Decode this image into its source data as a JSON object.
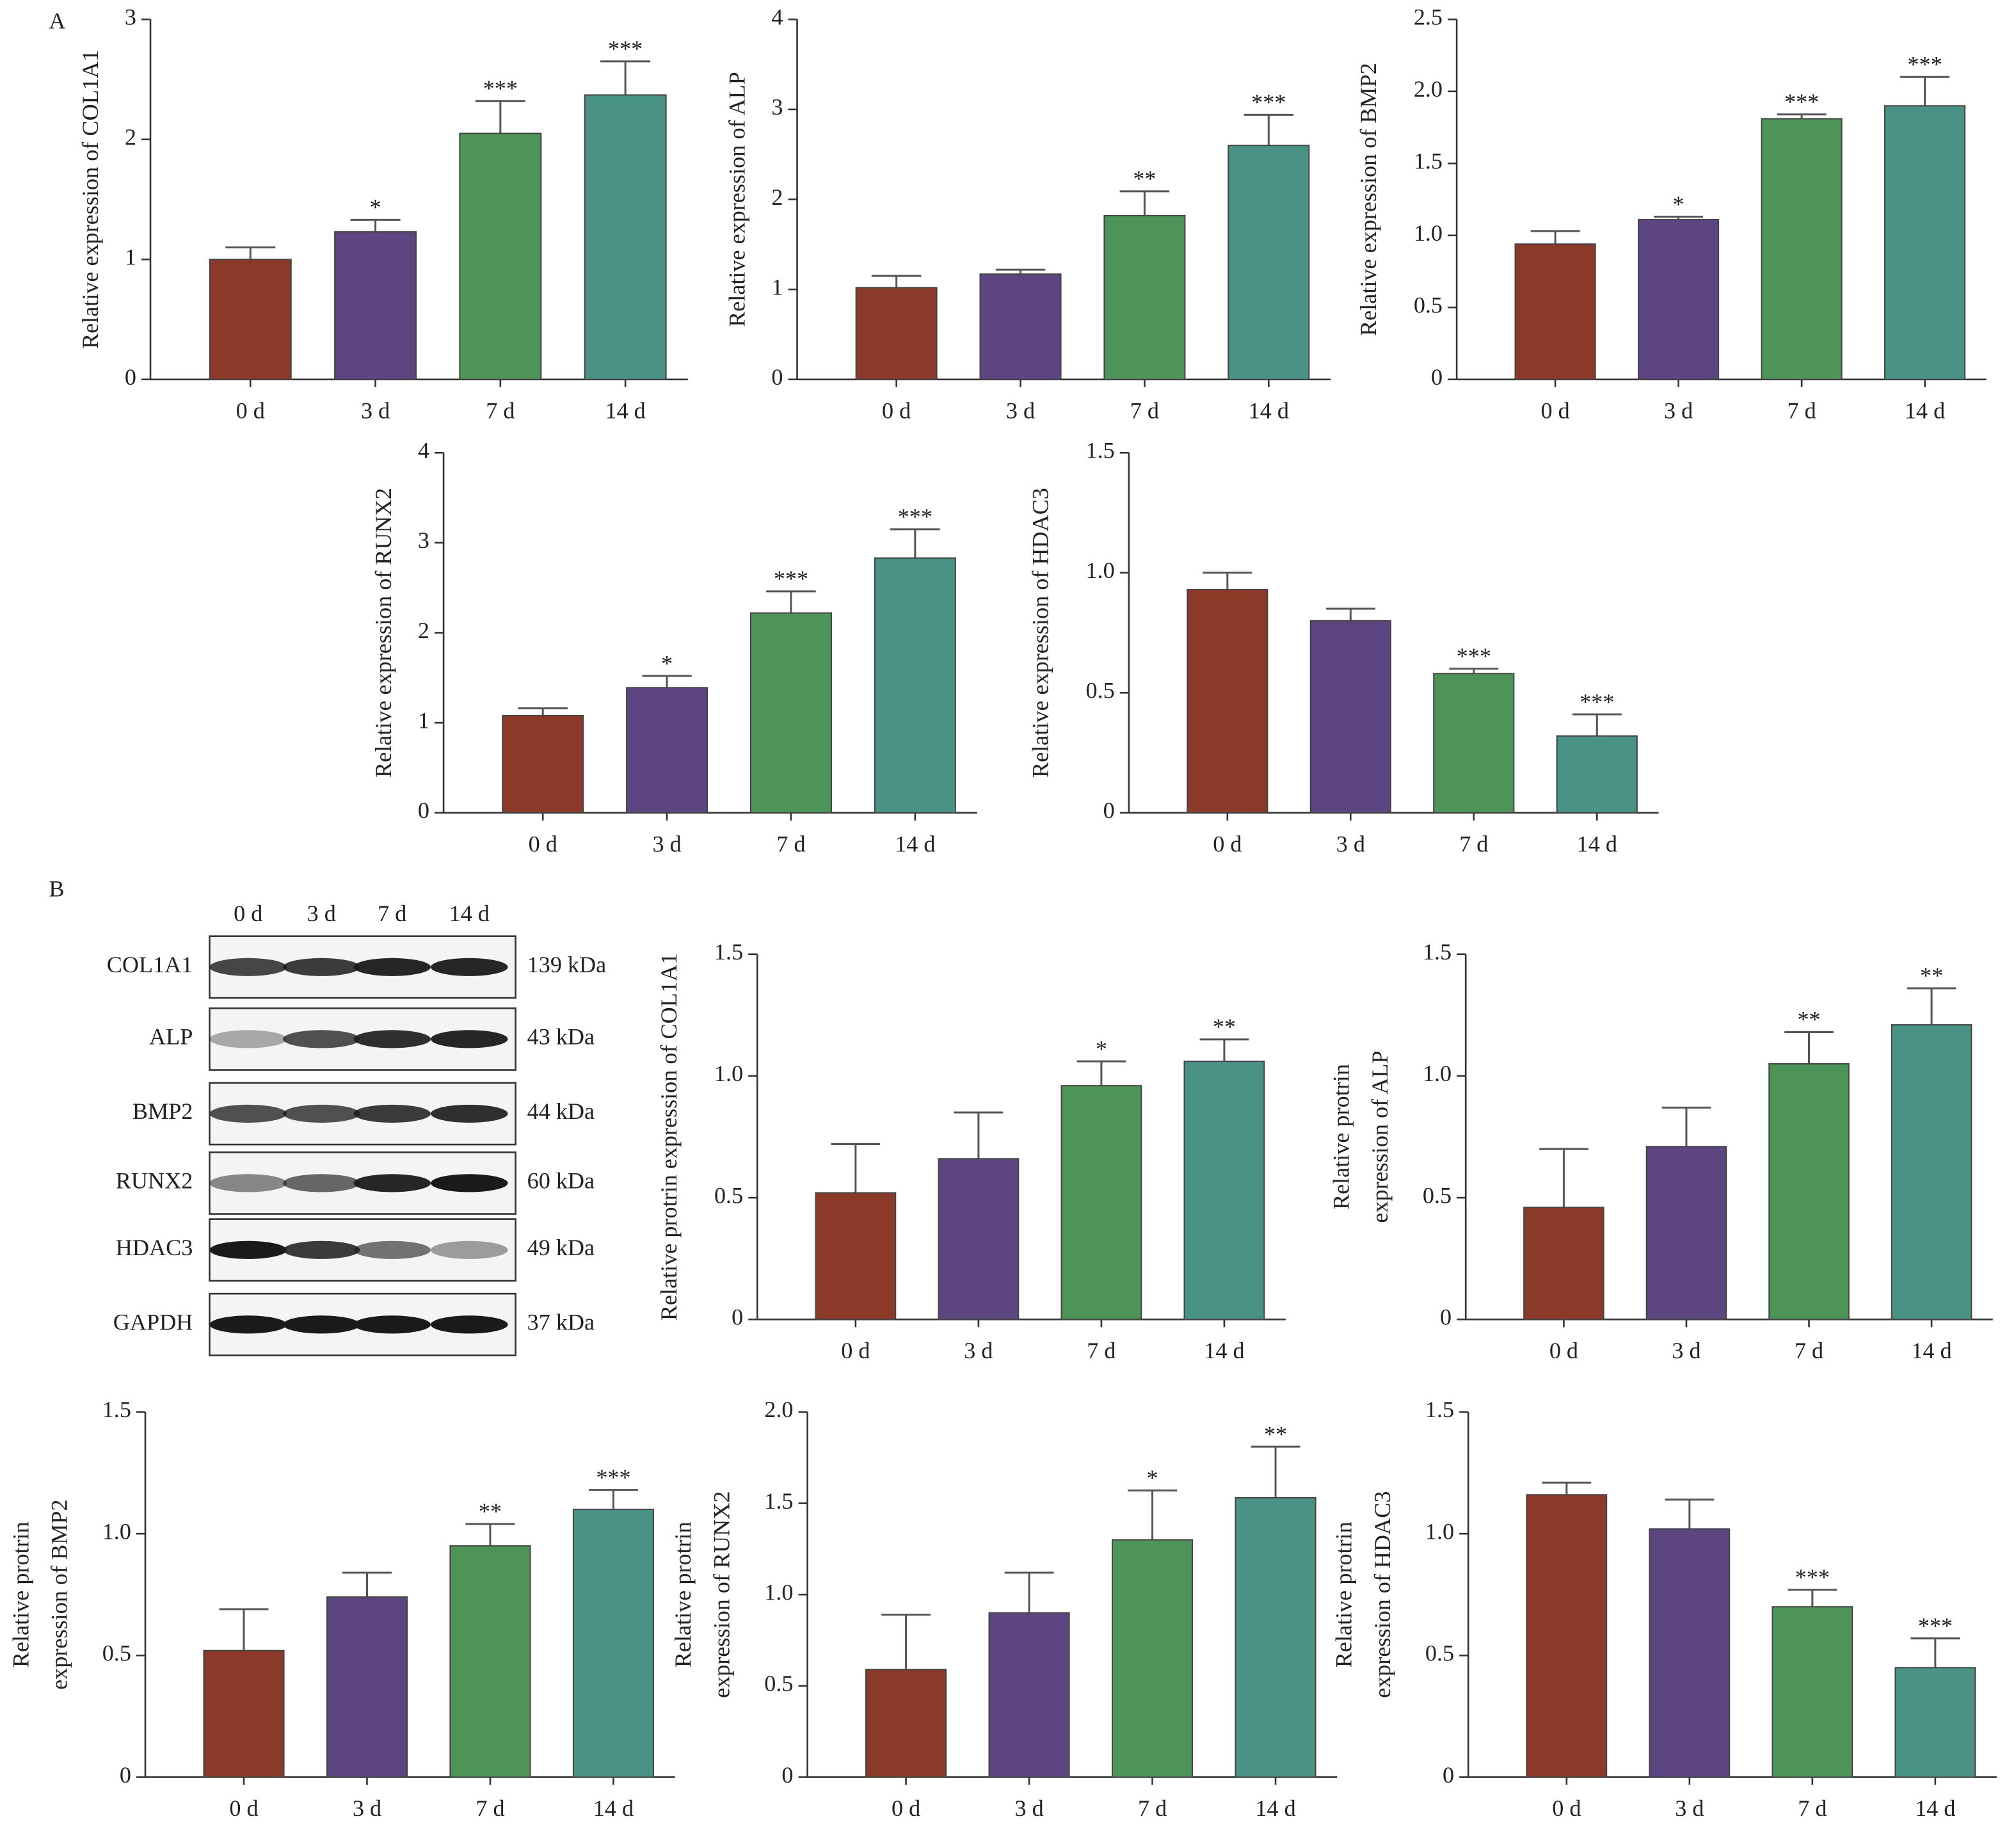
{
  "panels": [
    "A",
    "B"
  ],
  "blot": {
    "lanes": [
      "0 d",
      "3 d",
      "7 d",
      "14 d"
    ],
    "proteins": [
      "COL1A1",
      "ALP",
      "BMP2",
      "RUNX2",
      "HDAC3",
      "GAPDH"
    ],
    "weights": [
      "139 kDa",
      "43 kDa",
      "44 kDa",
      "60 kDa",
      "49 kDa",
      "37 kDa"
    ]
  },
  "chart_data": [
    {
      "type": "bar",
      "ylabel": [
        "Relative expression of COL1A1"
      ],
      "categories": [
        "0 d",
        "3 d",
        "7 d",
        "14 d"
      ],
      "colors": [
        "#8b3a2a",
        "#5c4580",
        "#4e9358",
        "#4a9186"
      ],
      "values": [
        1.0,
        1.23,
        2.05,
        2.37
      ],
      "errors": [
        0.1,
        0.1,
        0.27,
        0.28
      ],
      "annotations": [
        null,
        "*",
        "***",
        "***"
      ],
      "ylim": [
        0,
        3
      ],
      "yticks": [
        0,
        1,
        2,
        3
      ]
    },
    {
      "type": "bar",
      "ylabel": [
        "Relative expression of ALP"
      ],
      "categories": [
        "0 d",
        "3 d",
        "7 d",
        "14 d"
      ],
      "colors": [
        "#8b3a2a",
        "#5c4580",
        "#4e9358",
        "#4a9186"
      ],
      "values": [
        1.02,
        1.17,
        1.82,
        2.6
      ],
      "errors": [
        0.13,
        0.05,
        0.27,
        0.34
      ],
      "annotations": [
        null,
        null,
        "**",
        "***"
      ],
      "ylim": [
        0,
        4
      ],
      "yticks": [
        0,
        1,
        2,
        3,
        4
      ]
    },
    {
      "type": "bar",
      "ylabel": [
        "Relative expression of BMP2"
      ],
      "categories": [
        "0 d",
        "3 d",
        "7 d",
        "14 d"
      ],
      "colors": [
        "#8b3a2a",
        "#5c4580",
        "#4e9358",
        "#4a9186"
      ],
      "values": [
        0.94,
        1.11,
        1.81,
        1.9
      ],
      "errors": [
        0.09,
        0.02,
        0.03,
        0.2
      ],
      "annotations": [
        null,
        "*",
        "***",
        "***"
      ],
      "ylim": [
        0,
        2.5
      ],
      "yticks": [
        0,
        0.5,
        {
          "value": 1,
          "label": "1.0"
        },
        1.5,
        {
          "value": 2,
          "label": "2.0"
        },
        2.5
      ]
    },
    {
      "type": "bar",
      "ylabel": [
        "Relative expression of RUNX2"
      ],
      "categories": [
        "0 d",
        "3 d",
        "7 d",
        "14 d"
      ],
      "colors": [
        "#8b3a2a",
        "#5c4580",
        "#4e9358",
        "#4a9186"
      ],
      "values": [
        1.08,
        1.39,
        2.22,
        2.83
      ],
      "errors": [
        0.08,
        0.13,
        0.24,
        0.32
      ],
      "annotations": [
        null,
        "*",
        "***",
        "***"
      ],
      "ylim": [
        0,
        4
      ],
      "yticks": [
        0,
        1,
        2,
        3,
        4
      ]
    },
    {
      "type": "bar",
      "ylabel": [
        "Relative expression of HDAC3"
      ],
      "categories": [
        "0 d",
        "3 d",
        "7 d",
        "14 d"
      ],
      "colors": [
        "#8b3a2a",
        "#5c4580",
        "#4e9358",
        "#4a9186"
      ],
      "values": [
        0.93,
        0.8,
        0.58,
        0.32
      ],
      "errors": [
        0.07,
        0.05,
        0.02,
        0.09
      ],
      "annotations": [
        null,
        null,
        "***",
        "***"
      ],
      "ylim": [
        0,
        1.5
      ],
      "yticks": [
        0,
        0.5,
        {
          "value": 1,
          "label": "1.0"
        },
        1.5
      ]
    },
    {
      "type": "bar",
      "ylabel": [
        "Relative protrin expression of COL1A1"
      ],
      "categories": [
        "0 d",
        "3 d",
        "7 d",
        "14 d"
      ],
      "colors": [
        "#8b3a2a",
        "#5c4580",
        "#4e9358",
        "#4a9186"
      ],
      "values": [
        0.52,
        0.66,
        0.96,
        1.06
      ],
      "errors": [
        0.2,
        0.19,
        0.1,
        0.09
      ],
      "annotations": [
        null,
        null,
        "*",
        "**"
      ],
      "ylim": [
        0,
        1.5
      ],
      "yticks": [
        0,
        0.5,
        {
          "value": 1,
          "label": "1.0"
        },
        1.5
      ]
    },
    {
      "type": "bar",
      "ylabel": [
        "Relative protrin",
        "expression of ALP"
      ],
      "categories": [
        "0 d",
        "3 d",
        "7 d",
        "14 d"
      ],
      "colors": [
        "#8b3a2a",
        "#5c4580",
        "#4e9358",
        "#4a9186"
      ],
      "values": [
        0.46,
        0.71,
        1.05,
        1.21
      ],
      "errors": [
        0.24,
        0.16,
        0.13,
        0.15
      ],
      "annotations": [
        null,
        null,
        "**",
        "**"
      ],
      "ylim": [
        0,
        1.5
      ],
      "yticks": [
        0,
        0.5,
        {
          "value": 1,
          "label": "1.0"
        },
        1.5
      ]
    },
    {
      "type": "bar",
      "ylabel": [
        "Relative protrin",
        "expression of BMP2"
      ],
      "categories": [
        "0 d",
        "3 d",
        "7 d",
        "14 d"
      ],
      "colors": [
        "#8b3a2a",
        "#5c4580",
        "#4e9358",
        "#4a9186"
      ],
      "values": [
        0.52,
        0.74,
        0.95,
        1.1
      ],
      "errors": [
        0.17,
        0.1,
        0.09,
        0.08
      ],
      "annotations": [
        null,
        null,
        "**",
        "***"
      ],
      "ylim": [
        0,
        1.5
      ],
      "yticks": [
        0,
        0.5,
        {
          "value": 1,
          "label": "1.0"
        },
        1.5
      ]
    },
    {
      "type": "bar",
      "ylabel": [
        "Relative protrin",
        "expression of RUNX2"
      ],
      "categories": [
        "0 d",
        "3 d",
        "7 d",
        "14 d"
      ],
      "colors": [
        "#8b3a2a",
        "#5c4580",
        "#4e9358",
        "#4a9186"
      ],
      "values": [
        0.59,
        0.9,
        1.3,
        1.53
      ],
      "errors": [
        0.3,
        0.22,
        0.27,
        0.28
      ],
      "annotations": [
        null,
        null,
        "*",
        "**"
      ],
      "ylim": [
        0,
        2
      ],
      "yticks": [
        0,
        0.5,
        {
          "value": 1,
          "label": "1.0"
        },
        1.5,
        {
          "value": 2,
          "label": "2.0"
        }
      ]
    },
    {
      "type": "bar",
      "ylabel": [
        "Relative protrin",
        "expression of HDAC3"
      ],
      "categories": [
        "0 d",
        "3 d",
        "7 d",
        "14 d"
      ],
      "colors": [
        "#8b3a2a",
        "#5c4580",
        "#4e9358",
        "#4a9186"
      ],
      "values": [
        1.16,
        1.02,
        0.7,
        0.45
      ],
      "errors": [
        0.05,
        0.12,
        0.07,
        0.12
      ],
      "annotations": [
        null,
        null,
        "***",
        "***"
      ],
      "ylim": [
        0,
        1.5
      ],
      "yticks": [
        0,
        0.5,
        {
          "value": 1,
          "label": "1.0"
        },
        1.5
      ]
    }
  ]
}
